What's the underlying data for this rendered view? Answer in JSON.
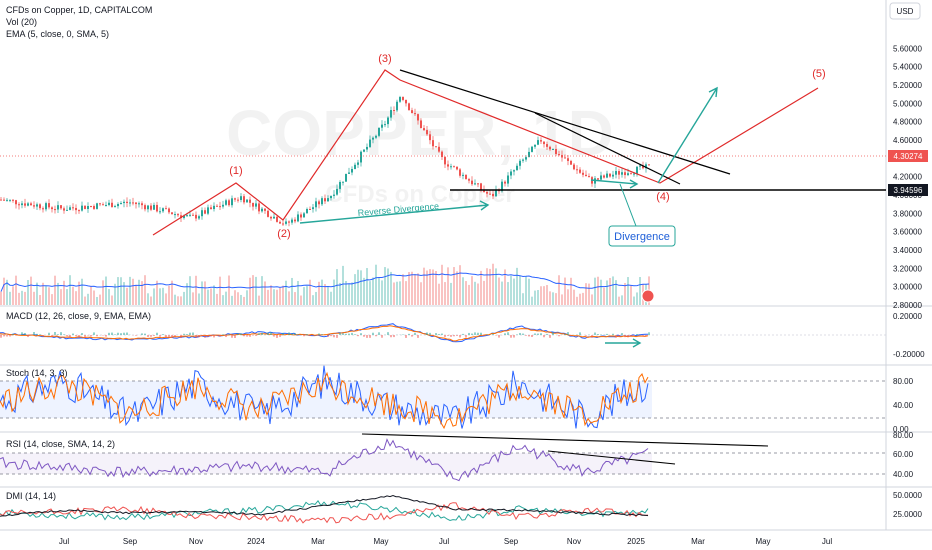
{
  "header": {
    "symbol": "CFDs on Copper, 1D, CAPITALCOM",
    "vol": "Vol (20)",
    "ema": "EMA (5, close, 0, SMA, 5)",
    "currency": "USD"
  },
  "watermark": {
    "main": "COPPER, 1D",
    "sub": "CFDs on Copper"
  },
  "price_labels": {
    "current": "4.30274",
    "support": "3.94596"
  },
  "annotations": {
    "reverse_divergence": "Reverse Divergence",
    "divergence": "Divergence",
    "waves": [
      "(1)",
      "(2)",
      "(3)",
      "(4)",
      "(5)"
    ]
  },
  "colors": {
    "up": "#26a69a",
    "down": "#ef5350",
    "wave": "#e02a2a",
    "teal": "#26a69a",
    "macd": "#2962ff",
    "signal": "#ff6d00",
    "rsi": "#7e57c2",
    "stoch_k": "#2962ff",
    "stoch_d": "#ff6d00",
    "dmi_plus": "#26a69a",
    "dmi_minus": "#ef5350",
    "adx": "#131722",
    "volume_ma": "#2962ff"
  },
  "chart_data": [
    {
      "type": "line",
      "title": "CFDs on Copper, 1D, CAPITALCOM",
      "ylabel": "USD",
      "ylim": [
        2.8,
        5.8
      ],
      "yticks": [
        "5.60000",
        "5.40000",
        "5.20000",
        "5.00000",
        "4.80000",
        "4.60000",
        "4.40000",
        "4.20000",
        "4.00000",
        "3.80000",
        "3.60000",
        "3.40000",
        "3.20000",
        "3.00000",
        "2.80000"
      ],
      "xticks": [
        "Jul",
        "Sep",
        "Nov",
        "2024",
        "Mar",
        "May",
        "Jul",
        "Sep",
        "Nov",
        "2025",
        "Mar",
        "May",
        "Jul"
      ],
      "series": [
        {
          "name": "CFDs on Copper",
          "x": [
            "2023-05",
            "2023-07",
            "2023-09",
            "2023-11",
            "2024-01",
            "2024-03",
            "2024-05",
            "2024-07",
            "2024-09",
            "2024-11",
            "2025-01"
          ],
          "values": [
            3.95,
            3.9,
            3.85,
            3.72,
            3.85,
            3.7,
            5.1,
            4.2,
            4.45,
            4.1,
            4.3
          ]
        }
      ],
      "levels": [
        {
          "label": "3.94596",
          "value": 3.94596
        },
        {
          "label": "4.30274",
          "value": 4.30274
        }
      ],
      "elliott_waves": [
        {
          "label": "(1)",
          "date": "2023-12",
          "value": 3.98
        },
        {
          "label": "(2)",
          "date": "2024-02",
          "value": 3.65
        },
        {
          "label": "(3)",
          "date": "2024-05",
          "value": 5.15
        },
        {
          "label": "(4)",
          "date": "2025-01",
          "value": 4.05
        },
        {
          "label": "(5)",
          "date": "2025-06",
          "value": 5.0
        }
      ]
    },
    {
      "type": "line",
      "title": "MACD (12, 26, close, 9, EMA, EMA)",
      "yticks": [
        "0.20000",
        "-0.20000"
      ],
      "series": [
        {
          "name": "MACD",
          "values": [
            0.02,
            -0.03,
            -0.05,
            -0.02,
            0.03,
            -0.01,
            0.12,
            -0.08,
            0.09,
            -0.03,
            0.01
          ]
        },
        {
          "name": "Signal",
          "values": [
            0.01,
            -0.02,
            -0.04,
            -0.01,
            0.01,
            0.0,
            0.1,
            -0.06,
            0.07,
            -0.02,
            -0.01
          ]
        }
      ]
    },
    {
      "type": "line",
      "title": "Stoch (14, 3, 3)",
      "yticks": [
        "80.00",
        "40.00",
        "0.00"
      ],
      "series": [
        {
          "name": "%K",
          "values": [
            50,
            85,
            20,
            80,
            25,
            85,
            40,
            15,
            80,
            20,
            85
          ]
        },
        {
          "name": "%D",
          "values": [
            48,
            80,
            25,
            75,
            30,
            80,
            45,
            20,
            75,
            25,
            80
          ]
        }
      ]
    },
    {
      "type": "line",
      "title": "RSI (14, close, SMA, 14, 2)",
      "yticks": [
        "80.00",
        "60.00",
        "40.00"
      ],
      "series": [
        {
          "name": "RSI",
          "values": [
            55,
            50,
            45,
            48,
            52,
            45,
            78,
            38,
            72,
            45,
            65
          ]
        }
      ]
    },
    {
      "type": "line",
      "title": "DMI (14, 14)",
      "yticks": [
        "50.0000",
        "25.0000"
      ],
      "series": [
        {
          "name": "ADX",
          "values": [
            20,
            28,
            24,
            26,
            22,
            35,
            50,
            30,
            28,
            24,
            20
          ]
        },
        {
          "name": "+DI",
          "values": [
            25,
            20,
            18,
            24,
            28,
            40,
            30,
            15,
            30,
            22,
            28
          ]
        },
        {
          "name": "-DI",
          "values": [
            22,
            26,
            30,
            20,
            18,
            12,
            20,
            35,
            18,
            28,
            22
          ]
        }
      ]
    }
  ]
}
